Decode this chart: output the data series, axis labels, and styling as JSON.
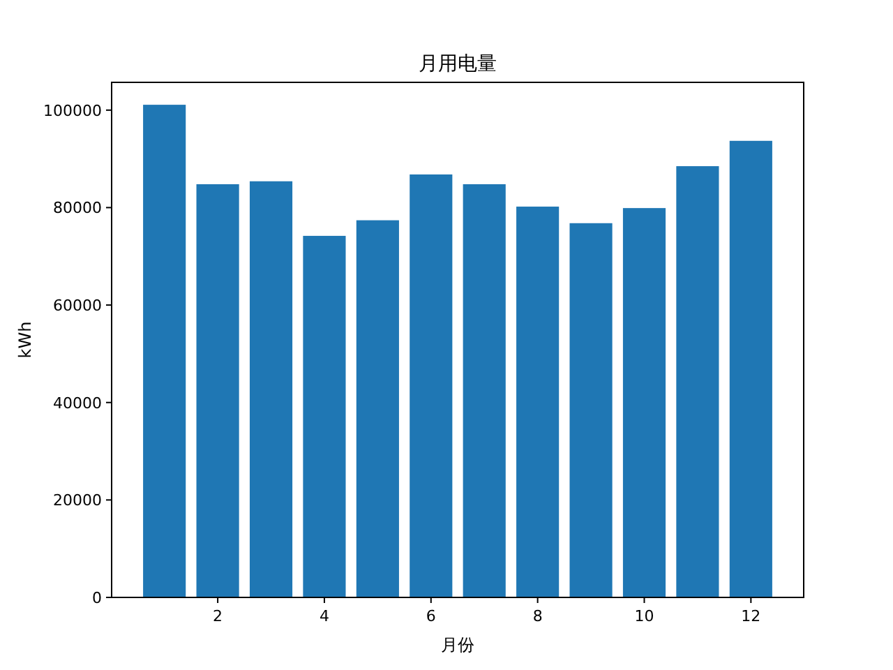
{
  "chart_data": {
    "type": "bar",
    "title": "月用电量",
    "xlabel": "月份",
    "ylabel": "kWh",
    "x": [
      1,
      2,
      3,
      4,
      5,
      6,
      7,
      8,
      9,
      10,
      11,
      12
    ],
    "values": [
      101100,
      84800,
      85400,
      74200,
      77400,
      86800,
      84800,
      80200,
      76800,
      79900,
      88500,
      93700
    ],
    "color": "#1f77b4",
    "xlim": [
      0.01,
      12.99
    ],
    "xticks": [
      2,
      4,
      6,
      8,
      10,
      12
    ],
    "ylim": [
      0,
      105700
    ],
    "yticks": [
      0,
      20000,
      40000,
      60000,
      80000,
      100000
    ]
  }
}
